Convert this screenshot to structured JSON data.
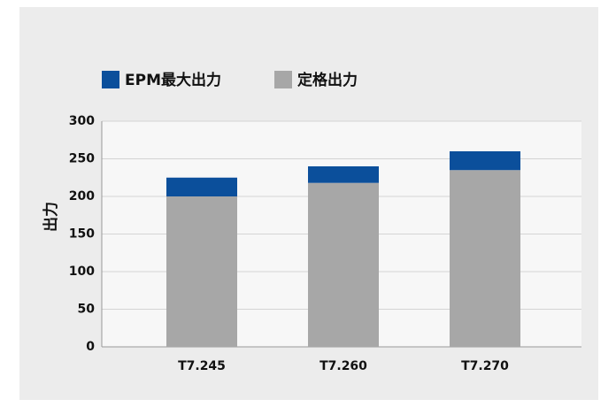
{
  "chart_data": {
    "type": "stacked_bar",
    "categories": [
      "T7.245",
      "T7.260",
      "T7.270"
    ],
    "series": [
      {
        "name": "EPM最大出力",
        "color": "#0b4f9b",
        "values": [
          25,
          22,
          25
        ]
      },
      {
        "name": "定格出力",
        "color": "#a7a7a7",
        "values": [
          200,
          218,
          235
        ]
      }
    ],
    "y_label": "出力",
    "ylim": [
      0,
      300
    ],
    "yticks": [
      0,
      50,
      100,
      150,
      200,
      250,
      300
    ],
    "grid": true,
    "legend": "top"
  }
}
